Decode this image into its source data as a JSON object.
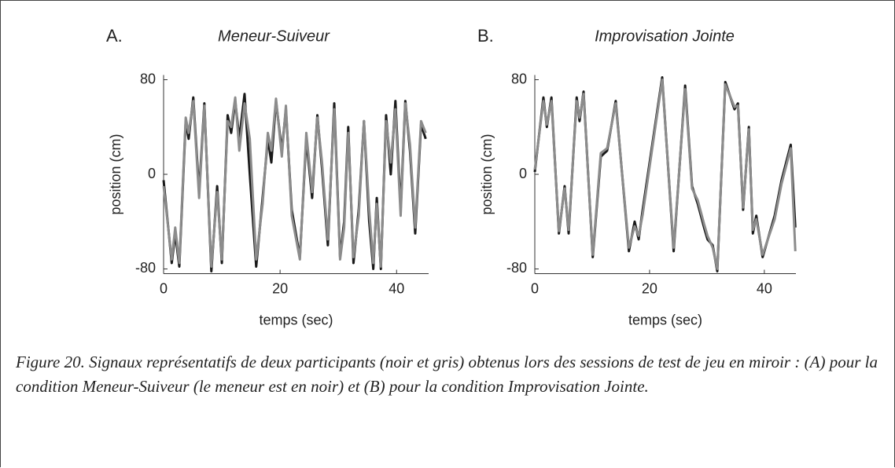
{
  "chart_data": [
    {
      "type": "line",
      "panel": "A.",
      "title": "Meneur-Suiveur",
      "xlabel": "temps (sec)",
      "ylabel": "position (cm)",
      "x": [
        0,
        1.4,
        2.0,
        2.7,
        3.8,
        4.3,
        5.1,
        6.1,
        7.0,
        8.2,
        9.2,
        10.0,
        11.0,
        11.6,
        12.3,
        13.0,
        13.9,
        14.8,
        15.9,
        17.0,
        17.9,
        18.5,
        19.3,
        20.3,
        21.0,
        22.0,
        23.4,
        24.5,
        25.5,
        26.4,
        27.2,
        28.2,
        29.3,
        30.3,
        31.0,
        31.7,
        32.6,
        33.5,
        34.4,
        35.3,
        36.0,
        36.6,
        37.3,
        38.2,
        39.0,
        39.8,
        40.7,
        41.5,
        42.3,
        43.2,
        44.2,
        45.0
      ],
      "series": [
        {
          "color": "#1a1a1a",
          "values": [
            -5,
            -75,
            -50,
            -78,
            45,
            30,
            65,
            -15,
            60,
            -82,
            -10,
            -75,
            50,
            35,
            62,
            30,
            68,
            0,
            -78,
            -20,
            30,
            10,
            62,
            20,
            55,
            -30,
            -70,
            30,
            -20,
            50,
            5,
            -60,
            60,
            -70,
            -40,
            40,
            -75,
            -30,
            45,
            -40,
            -80,
            -20,
            -80,
            50,
            0,
            62,
            -30,
            62,
            20,
            -50,
            42,
            30
          ]
        },
        {
          "color": "#8c8c8c",
          "values": [
            -10,
            -72,
            -45,
            -75,
            48,
            35,
            62,
            -20,
            58,
            -78,
            -15,
            -72,
            45,
            40,
            65,
            20,
            60,
            30,
            -72,
            -25,
            35,
            20,
            64,
            15,
            58,
            -35,
            -72,
            35,
            -15,
            48,
            10,
            -55,
            55,
            -72,
            -45,
            35,
            -70,
            -35,
            45,
            -30,
            -75,
            -25,
            -78,
            45,
            10,
            55,
            -35,
            60,
            25,
            -45,
            45,
            35
          ]
        }
      ],
      "xlim": [
        0,
        45.5
      ],
      "ylim": [
        -84,
        84
      ],
      "xticks": [
        0,
        20,
        40
      ],
      "yticks": [
        -80,
        0,
        80
      ]
    },
    {
      "type": "line",
      "panel": "B.",
      "title": "Improvisation Jointe",
      "xlabel": "temps (sec)",
      "ylabel": "position (cm)",
      "x": [
        0,
        1.5,
        2.1,
        2.9,
        4.2,
        5.2,
        5.9,
        7.3,
        7.8,
        8.5,
        10.1,
        11.5,
        12.6,
        14.1,
        16.4,
        17.4,
        18.1,
        18.8,
        22.2,
        24.2,
        26.2,
        27.4,
        28.4,
        29.5,
        30.1,
        31.0,
        31.8,
        33.2,
        34.8,
        35.4,
        36.3,
        37.3,
        38.0,
        38.6,
        39.7,
        41.8,
        43.0,
        44.6,
        45.4
      ],
      "series": [
        {
          "color": "#1a1a1a",
          "values": [
            2,
            65,
            40,
            65,
            -50,
            -10,
            -50,
            65,
            45,
            70,
            -70,
            15,
            20,
            62,
            -65,
            -40,
            -55,
            -30,
            82,
            -65,
            75,
            -10,
            -25,
            -45,
            -55,
            -60,
            -82,
            78,
            55,
            60,
            -30,
            40,
            -50,
            -35,
            -70,
            -35,
            -5,
            25,
            -45
          ]
        },
        {
          "color": "#8c8c8c",
          "values": [
            4,
            62,
            42,
            62,
            -48,
            -12,
            -47,
            62,
            48,
            68,
            -68,
            18,
            22,
            60,
            -62,
            -44,
            -52,
            -34,
            80,
            -62,
            72,
            -12,
            -22,
            -42,
            -52,
            -62,
            -80,
            76,
            57,
            58,
            -28,
            38,
            -47,
            -38,
            -68,
            -38,
            -8,
            22,
            -65
          ]
        }
      ],
      "xlim": [
        0,
        45.5
      ],
      "ylim": [
        -84,
        84
      ],
      "xticks": [
        0,
        20,
        40
      ],
      "yticks": [
        -80,
        0,
        80
      ]
    }
  ],
  "caption": "Figure 20. Signaux représentatifs de deux participants (noir et gris) obtenus lors des sessions de test de jeu en miroir : (A) pour la condition Meneur-Suiveur (le meneur est en noir) et (B) pour la condition Improvisation Jointe."
}
